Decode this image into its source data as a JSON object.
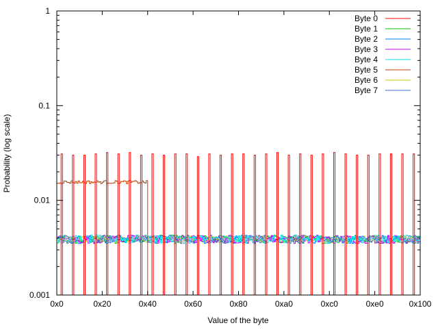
{
  "chart_data": {
    "type": "line",
    "style": "histogram-steps",
    "title": "",
    "xlabel": "Value of the byte",
    "ylabel": "Probability (log scale)",
    "xlim": [
      0,
      256
    ],
    "ylim": [
      0.001,
      1
    ],
    "yscale": "log",
    "grid": false,
    "legend_position": "top-right",
    "x_ticks": [
      {
        "value": 0,
        "label": "0x0"
      },
      {
        "value": 32,
        "label": "0x20"
      },
      {
        "value": 64,
        "label": "0x40"
      },
      {
        "value": 96,
        "label": "0x60"
      },
      {
        "value": 128,
        "label": "0x80"
      },
      {
        "value": 160,
        "label": "0xa0"
      },
      {
        "value": 192,
        "label": "0xc0"
      },
      {
        "value": 224,
        "label": "0xe0"
      },
      {
        "value": 256,
        "label": "0x100"
      }
    ],
    "y_ticks": [
      {
        "value": 1,
        "label": "1"
      },
      {
        "value": 0.1,
        "label": "0.1"
      },
      {
        "value": 0.01,
        "label": "0.01"
      },
      {
        "value": 0.001,
        "label": "0.001"
      }
    ],
    "series": [
      {
        "name": "Byte 0",
        "color": "#ff0000",
        "pattern": "spikes",
        "spike_start": 3,
        "spike_step": 8,
        "spike_values": [
          0.031,
          0.03,
          0.03,
          0.031,
          0.032,
          0.031,
          0.032,
          0.03,
          0.031,
          0.03,
          0.031,
          0.031,
          0.029,
          0.031,
          0.03,
          0.031,
          0.031,
          0.03,
          0.031,
          0.032,
          0.03,
          0.031,
          0.03,
          0.031,
          0.032,
          0.031,
          0.03,
          0.03,
          0.031,
          0.031,
          0.031,
          0.031
        ],
        "base": 0
      },
      {
        "name": "Byte 1",
        "color": "#00c000",
        "pattern": "noise",
        "base": 0.0039,
        "spread": 0.0004
      },
      {
        "name": "Byte 2",
        "color": "#0080ff",
        "pattern": "noise",
        "base": 0.0039,
        "spread": 0.0004
      },
      {
        "name": "Byte 3",
        "color": "#c000ff",
        "pattern": "noise",
        "base": 0.0039,
        "spread": 0.0004
      },
      {
        "name": "Byte 4",
        "color": "#00e0e0",
        "pattern": "noise",
        "base": 0.0039,
        "spread": 0.0004
      },
      {
        "name": "Byte 5",
        "color": "#c04000",
        "pattern": "range",
        "base": 0.0156,
        "spread": 0.0006,
        "range": [
          0,
          64
        ]
      },
      {
        "name": "Byte 6",
        "color": "#c8c800",
        "pattern": "noise",
        "base": 0.0039,
        "spread": 0.0003
      },
      {
        "name": "Byte 7",
        "color": "#4169e1",
        "pattern": "noise",
        "base": 0.0039,
        "spread": 0.0003
      }
    ]
  }
}
